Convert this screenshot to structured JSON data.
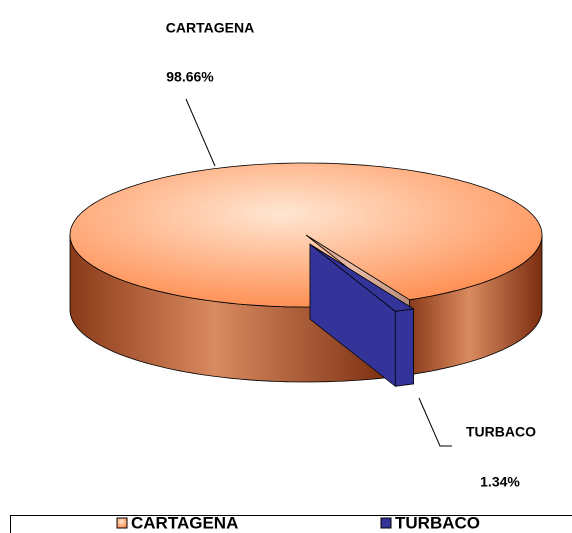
{
  "chart_data": {
    "type": "pie",
    "categories": [
      "CARTAGENA",
      "TURBACO"
    ],
    "values": [
      98.66,
      1.34
    ],
    "value_labels": [
      "98.66%",
      "1.34%"
    ],
    "colors": [
      "#ff8a4c",
      "#333399"
    ],
    "legend": "bottom"
  }
}
